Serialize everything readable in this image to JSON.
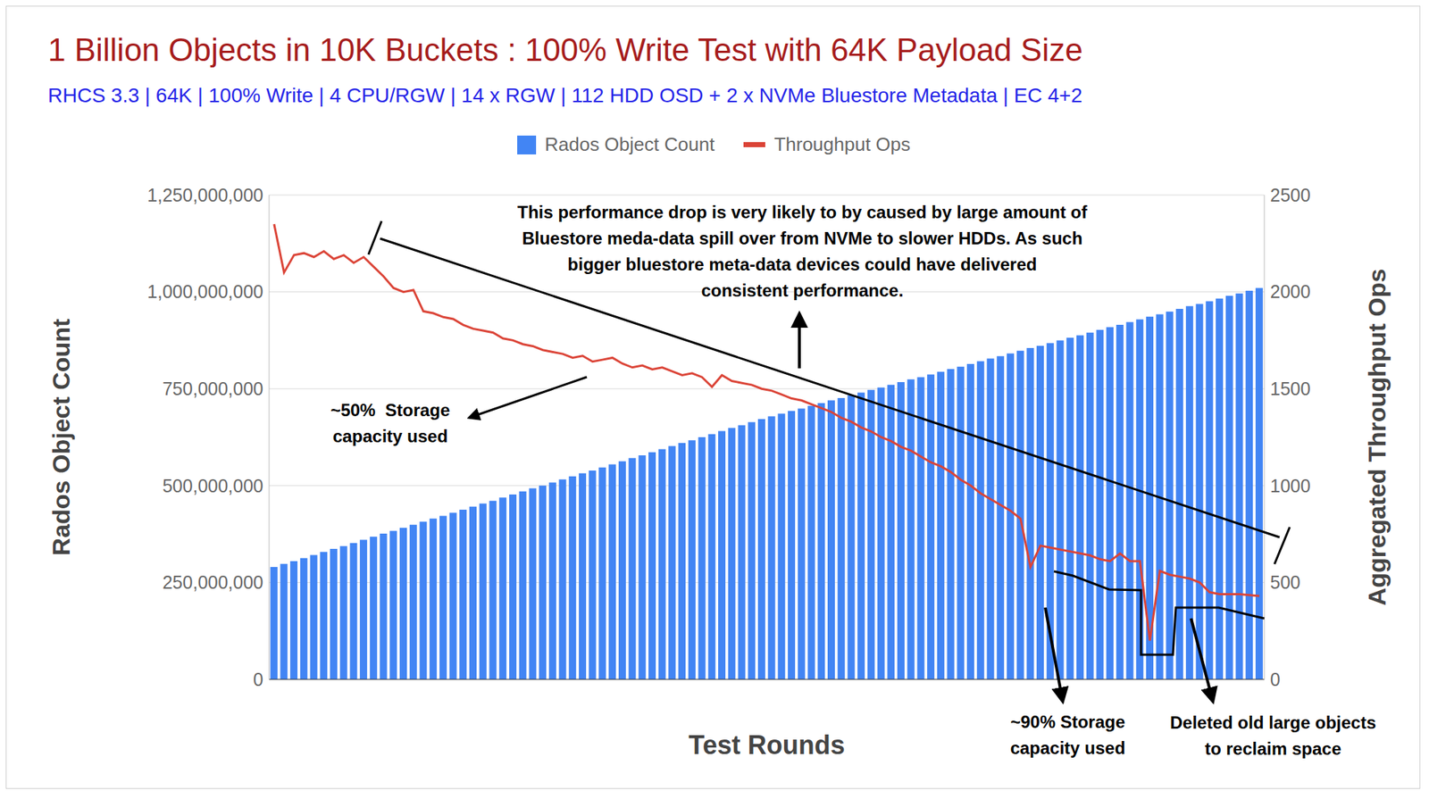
{
  "chart_data": {
    "type": "bar",
    "title": "1 Billion Objects in 10K Buckets : 100% Write Test with 64K Payload Size",
    "subtitle": "RHCS 3.3 | 64K | 100% Write | 4 CPU/RGW | 14 x RGW | 112 HDD OSD + 2 x NVMe Bluestore Metadata | EC 4+2",
    "x_label": "Test Rounds",
    "y_label": "Rados Object Count",
    "y2_label": "Aggregated Throughput Ops",
    "categories": [
      null,
      null,
      null,
      null,
      null,
      null,
      null,
      null,
      null,
      null,
      null,
      null,
      null,
      null,
      null,
      null,
      null,
      null,
      null,
      null,
      null,
      null,
      null,
      null,
      null,
      null,
      null,
      null,
      null,
      null,
      null,
      null,
      null,
      null,
      null,
      null,
      null,
      null,
      null,
      null,
      null,
      null,
      null,
      null,
      null,
      null,
      null,
      null,
      null,
      null,
      null,
      null,
      null,
      null,
      null,
      null,
      null,
      null,
      null,
      null,
      null,
      null,
      null,
      null,
      null,
      null,
      null,
      null,
      null,
      null,
      null,
      null,
      null,
      null,
      null,
      null,
      null,
      null,
      null,
      null,
      null,
      null,
      null,
      null,
      null,
      null,
      null,
      null,
      null,
      null,
      null,
      null,
      null,
      null,
      null,
      null,
      null,
      null,
      null,
      null
    ],
    "series": [
      {
        "name": "Rados Object Count",
        "type": "bar",
        "color": "#4285f4",
        "values": [
          290000000,
          298000000,
          305000000,
          313000000,
          321000000,
          329000000,
          337000000,
          344000000,
          352000000,
          360000000,
          368000000,
          376000000,
          383000000,
          391000000,
          399000000,
          407000000,
          415000000,
          422000000,
          430000000,
          438000000,
          446000000,
          454000000,
          461000000,
          469000000,
          477000000,
          485000000,
          493000000,
          500000000,
          508000000,
          516000000,
          524000000,
          532000000,
          539000000,
          547000000,
          555000000,
          563000000,
          571000000,
          578000000,
          586000000,
          594000000,
          602000000,
          610000000,
          617000000,
          625000000,
          633000000,
          641000000,
          649000000,
          656000000,
          664000000,
          672000000,
          679000000,
          686000000,
          693000000,
          699000000,
          706000000,
          713000000,
          720000000,
          726000000,
          733000000,
          740000000,
          747000000,
          753000000,
          760000000,
          767000000,
          774000000,
          780000000,
          787000000,
          794000000,
          801000000,
          807000000,
          814000000,
          821000000,
          828000000,
          834000000,
          841000000,
          848000000,
          855000000,
          861000000,
          868000000,
          875000000,
          882000000,
          888000000,
          895000000,
          902000000,
          909000000,
          915000000,
          922000000,
          929000000,
          936000000,
          942000000,
          949000000,
          956000000,
          963000000,
          969000000,
          976000000,
          983000000,
          990000000,
          996000000,
          1003000000,
          1010000000
        ]
      },
      {
        "name": "Throughput Ops",
        "type": "line",
        "color": "#db4437",
        "axis": "y2",
        "values": [
          2350,
          2100,
          2190,
          2200,
          2180,
          2210,
          2170,
          2190,
          2150,
          2180,
          2130,
          2080,
          2020,
          2000,
          2010,
          1900,
          1890,
          1870,
          1860,
          1830,
          1810,
          1800,
          1790,
          1760,
          1750,
          1730,
          1720,
          1700,
          1690,
          1680,
          1660,
          1670,
          1640,
          1650,
          1660,
          1630,
          1610,
          1620,
          1600,
          1610,
          1590,
          1570,
          1580,
          1560,
          1510,
          1570,
          1540,
          1530,
          1520,
          1500,
          1490,
          1470,
          1450,
          1440,
          1420,
          1400,
          1380,
          1350,
          1330,
          1300,
          1280,
          1250,
          1230,
          1200,
          1180,
          1150,
          1120,
          1100,
          1070,
          1030,
          1000,
          960,
          930,
          900,
          870,
          830,
          580,
          690,
          680,
          670,
          660,
          650,
          640,
          620,
          610,
          650,
          610,
          610,
          200,
          560,
          540,
          530,
          520,
          500,
          450,
          440,
          440,
          440,
          435,
          430
        ]
      }
    ],
    "ylim": [
      0,
      1250000000
    ],
    "yticks": [
      0,
      {
        "value": 250000000,
        "label": "250,000,000"
      },
      {
        "value": 500000000,
        "label": "500,000,000"
      },
      {
        "value": 750000000,
        "label": "750,000,000"
      },
      {
        "value": 1000000000,
        "label": "1,000,000,000"
      },
      {
        "value": 1250000000,
        "label": "1,250,000,000"
      }
    ],
    "y2lim": [
      0,
      2500
    ],
    "y2ticks": [
      0,
      500,
      1000,
      1500,
      2000,
      2500
    ],
    "grid": true,
    "legend": "top",
    "annotations": [
      {
        "text": [
          "This performance drop is very likely to by caused by large amount of",
          "Bluestore meda-data spill over from NVMe to slower HDDs. As such",
          "bigger bluestore meta-data devices could have delivered",
          "consistent performance."
        ]
      },
      {
        "text": [
          "~50%  Storage",
          "capacity used"
        ]
      },
      {
        "text": [
          "~90% Storage",
          "capacity used"
        ]
      },
      {
        "text": [
          "Deleted old large objects",
          "to reclaim space"
        ]
      }
    ]
  }
}
